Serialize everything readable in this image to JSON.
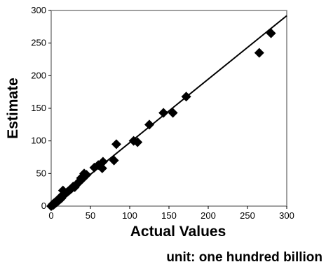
{
  "chart_data": {
    "type": "scatter",
    "title": "",
    "xlabel": "Actual Values",
    "ylabel": "Estimate",
    "unit_note": "unit: one hundred billion",
    "xlim": [
      0,
      300
    ],
    "ylim": [
      0,
      300
    ],
    "xticks": [
      "0",
      "50",
      "100",
      "150",
      "200",
      "250",
      "300"
    ],
    "yticks": [
      "0",
      "50",
      "100",
      "150",
      "200",
      "250",
      "300"
    ],
    "grid": false,
    "legend": "none",
    "marker": "diamond",
    "marker_color": "#000000",
    "series": [
      {
        "points": [
          [
            0,
            0
          ],
          [
            1,
            1
          ],
          [
            2,
            3
          ],
          [
            3,
            2
          ],
          [
            4,
            5
          ],
          [
            5,
            4
          ],
          [
            6,
            7
          ],
          [
            7,
            6
          ],
          [
            8,
            9
          ],
          [
            9,
            8
          ],
          [
            10,
            11
          ],
          [
            11,
            10
          ],
          [
            12,
            14
          ],
          [
            13,
            12
          ],
          [
            14,
            15
          ],
          [
            15,
            24
          ],
          [
            16,
            17
          ],
          [
            18,
            19
          ],
          [
            20,
            21
          ],
          [
            22,
            23
          ],
          [
            24,
            25
          ],
          [
            26,
            27
          ],
          [
            28,
            30
          ],
          [
            30,
            29
          ],
          [
            32,
            33
          ],
          [
            34,
            35
          ],
          [
            36,
            38
          ],
          [
            38,
            43
          ],
          [
            40,
            42
          ],
          [
            42,
            50
          ],
          [
            45,
            48
          ],
          [
            55,
            59
          ],
          [
            60,
            63
          ],
          [
            65,
            58
          ],
          [
            66,
            68
          ],
          [
            80,
            70
          ],
          [
            83,
            95
          ],
          [
            105,
            100
          ],
          [
            110,
            98
          ],
          [
            125,
            125
          ],
          [
            143,
            143
          ],
          [
            155,
            143
          ],
          [
            172,
            168
          ],
          [
            265,
            235
          ],
          [
            280,
            265
          ]
        ]
      }
    ],
    "trendline": {
      "from": [
        0,
        0
      ],
      "to": [
        300,
        292
      ]
    }
  }
}
